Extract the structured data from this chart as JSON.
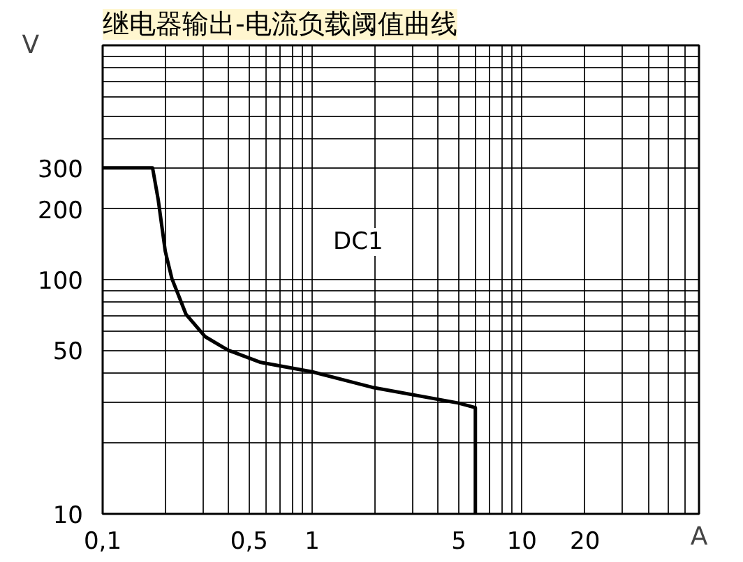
{
  "chart_data": {
    "type": "line",
    "title": "继电器输出-电流负载阈值曲线",
    "xlabel": "A",
    "ylabel": "V",
    "log": "xy",
    "grid": true,
    "marker": "none",
    "line_style": "solid",
    "x": [
      0.1,
      0.173,
      0.184,
      0.199,
      0.214,
      0.25,
      0.309,
      0.396,
      0.569,
      1,
      1.93,
      5,
      6,
      6
    ],
    "series": [
      {
        "color": "#000000",
        "values": [
          300,
          300,
          220,
          132,
          101,
          71,
          57,
          50,
          44.3,
          40.4,
          34.7,
          29.7,
          28.4,
          10
        ]
      }
    ],
    "xlim": [
      0.1,
      70
    ],
    "ylim": [
      10,
      1000
    ],
    "xticks": [
      {
        "value": 0.1,
        "label": "0,1"
      },
      {
        "value": 0.2,
        "label": null
      },
      {
        "value": 0.3,
        "label": null
      },
      {
        "value": 0.4,
        "label": null
      },
      {
        "value": 0.5,
        "label": "0,5"
      },
      {
        "value": 0.6,
        "label": null
      },
      {
        "value": 0.7,
        "label": null
      },
      {
        "value": 0.8,
        "label": null
      },
      {
        "value": 0.9,
        "label": null
      },
      1,
      {
        "value": 2,
        "label": null
      },
      {
        "value": 3,
        "label": null
      },
      {
        "value": 4,
        "label": null
      },
      5,
      {
        "value": 6,
        "label": null
      },
      {
        "value": 7,
        "label": null
      },
      {
        "value": 8,
        "label": null
      },
      {
        "value": 9,
        "label": null
      },
      10,
      20,
      {
        "value": 30,
        "label": null
      },
      {
        "value": 40,
        "label": null
      },
      {
        "value": 50,
        "label": null
      },
      {
        "value": 60,
        "label": null
      }
    ],
    "yticks": [
      10,
      {
        "value": 20,
        "label": null
      },
      {
        "value": 30,
        "label": null
      },
      {
        "value": 40,
        "label": null
      },
      50,
      {
        "value": 60,
        "label": null
      },
      {
        "value": 70,
        "label": null
      },
      {
        "value": 80,
        "label": null
      },
      {
        "value": 90,
        "label": null
      },
      100,
      200,
      300,
      {
        "value": 400,
        "label": null
      },
      {
        "value": 500,
        "label": null
      },
      {
        "value": 600,
        "label": null
      },
      {
        "value": 700,
        "label": null
      },
      {
        "value": 800,
        "label": null
      },
      {
        "value": 900,
        "label": null
      }
    ],
    "annotations": [
      "DC1"
    ]
  }
}
